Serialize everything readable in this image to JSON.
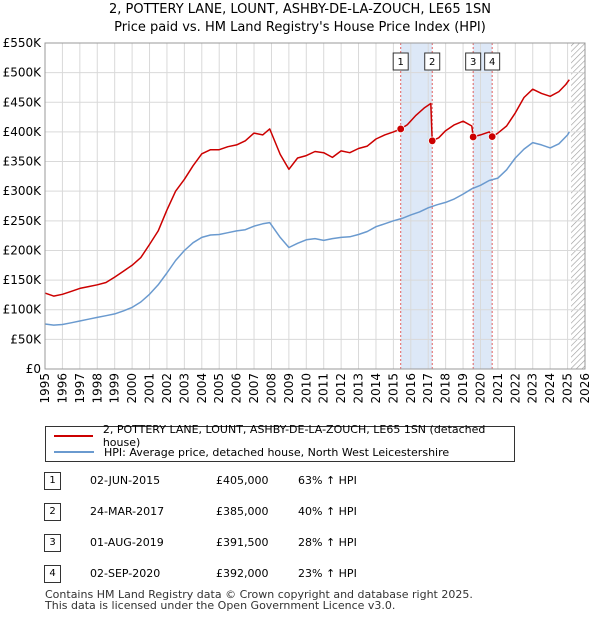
{
  "title_line1": "2, POTTERY LANE, LOUNT, ASHBY-DE-LA-ZOUCH, LE65 1SN",
  "title_line2": "Price paid vs. HM Land Registry's House Price Index (HPI)",
  "colors": {
    "property": "#cc0000",
    "hpi": "#6a9acf",
    "shade": "#dde8f7",
    "marker_line": "#e06060"
  },
  "legend": {
    "property_label": "2, POTTERY LANE, LOUNT, ASHBY-DE-LA-ZOUCH, LE65 1SN (detached house)",
    "hpi_label": "HPI: Average price, detached house, North West Leicestershire"
  },
  "sales": [
    {
      "num": "1",
      "date": "02-JUN-2015",
      "price": "£405,000",
      "hpi": "63% ↑ HPI"
    },
    {
      "num": "2",
      "date": "24-MAR-2017",
      "price": "£385,000",
      "hpi": "40% ↑ HPI"
    },
    {
      "num": "3",
      "date": "01-AUG-2019",
      "price": "£391,500",
      "hpi": "28% ↑ HPI"
    },
    {
      "num": "4",
      "date": "02-SEP-2020",
      "price": "£392,000",
      "hpi": "23% ↑ HPI"
    }
  ],
  "footer": {
    "line1": "Contains HM Land Registry data © Crown copyright and database right 2025.",
    "line2": "This data is licensed under the Open Government Licence v3.0."
  },
  "chart_data": {
    "type": "line",
    "xlim": [
      1995,
      2026
    ],
    "ylim": [
      0,
      550000
    ],
    "x_ticks": [
      1995,
      1996,
      1997,
      1998,
      1999,
      2000,
      2001,
      2002,
      2003,
      2004,
      2005,
      2006,
      2007,
      2008,
      2009,
      2010,
      2011,
      2012,
      2013,
      2014,
      2015,
      2016,
      2017,
      2018,
      2019,
      2020,
      2021,
      2022,
      2023,
      2024,
      2025,
      2026
    ],
    "y_ticks": [
      {
        "v": 0,
        "label": "£0"
      },
      {
        "v": 50000,
        "label": "£50K"
      },
      {
        "v": 100000,
        "label": "£100K"
      },
      {
        "v": 150000,
        "label": "£150K"
      },
      {
        "v": 200000,
        "label": "£200K"
      },
      {
        "v": 250000,
        "label": "£250K"
      },
      {
        "v": 300000,
        "label": "£300K"
      },
      {
        "v": 350000,
        "label": "£350K"
      },
      {
        "v": 400000,
        "label": "£400K"
      },
      {
        "v": 450000,
        "label": "£450K"
      },
      {
        "v": 500000,
        "label": "£500K"
      },
      {
        "v": 550000,
        "label": "£550K"
      }
    ],
    "shaded_ranges": [
      [
        2015.42,
        2017.23
      ],
      [
        2019.58,
        2020.67
      ]
    ],
    "hatch_from": 2025.2,
    "series": [
      {
        "name": "2, POTTERY LANE, LOUNT, ASHBY-DE-LA-ZOUCH, LE65 1SN (detached house)",
        "x": [
          1995,
          1995.5,
          1996,
          1996.5,
          1997,
          1997.5,
          1998,
          1998.5,
          1999,
          1999.5,
          2000,
          2000.5,
          2001,
          2001.5,
          2002,
          2002.5,
          2003,
          2003.5,
          2004,
          2004.5,
          2005,
          2005.5,
          2006,
          2006.5,
          2007,
          2007.5,
          2007.9,
          2008.5,
          2009,
          2009.5,
          2010,
          2010.5,
          2011,
          2011.5,
          2012,
          2012.5,
          2013,
          2013.5,
          2014,
          2014.5,
          2015,
          2015.42,
          2015.8,
          2016.3,
          2016.8,
          2017.15,
          2017.23,
          2017.6,
          2018,
          2018.5,
          2019,
          2019.5,
          2019.58,
          2020,
          2020.5,
          2020.67,
          2021,
          2021.5,
          2022,
          2022.5,
          2023,
          2023.5,
          2024,
          2024.5,
          2024.9,
          2025.1
        ],
        "values": [
          128000,
          123000,
          126000,
          131000,
          136000,
          139000,
          142000,
          146000,
          155000,
          165000,
          175000,
          188000,
          210000,
          233000,
          268000,
          300000,
          320000,
          343000,
          363000,
          370000,
          370000,
          375000,
          378000,
          385000,
          398000,
          395000,
          405000,
          362000,
          337000,
          356000,
          360000,
          367000,
          365000,
          357000,
          368000,
          365000,
          372000,
          376000,
          388000,
          395000,
          400000,
          405000,
          412000,
          428000,
          441000,
          448000,
          385000,
          390000,
          402000,
          412000,
          418000,
          410000,
          391500,
          395000,
          400000,
          392000,
          398000,
          410000,
          432000,
          458000,
          472000,
          465000,
          460000,
          468000,
          480000,
          488000
        ]
      },
      {
        "name": "HPI: Average price, detached house, North West Leicestershire",
        "x": [
          1995,
          1995.5,
          1996,
          1996.5,
          1997,
          1997.5,
          1998,
          1998.5,
          1999,
          1999.5,
          2000,
          2000.5,
          2001,
          2001.5,
          2002,
          2002.5,
          2003,
          2003.5,
          2004,
          2004.5,
          2005,
          2005.5,
          2006,
          2006.5,
          2007,
          2007.5,
          2007.9,
          2008.5,
          2009,
          2009.5,
          2010,
          2010.5,
          2011,
          2011.5,
          2012,
          2012.5,
          2013,
          2013.5,
          2014,
          2014.5,
          2015,
          2015.5,
          2016,
          2016.5,
          2017,
          2017.5,
          2018,
          2018.5,
          2019,
          2019.5,
          2020,
          2020.5,
          2021,
          2021.5,
          2022,
          2022.5,
          2023,
          2023.5,
          2024,
          2024.5,
          2025,
          2025.1
        ],
        "values": [
          76000,
          74000,
          75000,
          78000,
          81000,
          84000,
          87000,
          90000,
          93000,
          98000,
          104000,
          113000,
          126000,
          142000,
          162000,
          183000,
          200000,
          213000,
          222000,
          226000,
          227000,
          230000,
          233000,
          235000,
          241000,
          245000,
          247000,
          222000,
          205000,
          212000,
          218000,
          220000,
          217000,
          220000,
          222000,
          223000,
          227000,
          232000,
          240000,
          245000,
          250000,
          254000,
          260000,
          265000,
          272000,
          277000,
          281000,
          287000,
          295000,
          304000,
          310000,
          318000,
          322000,
          336000,
          356000,
          371000,
          382000,
          378000,
          373000,
          380000,
          395000,
          400000
        ]
      }
    ],
    "sale_points": [
      {
        "label": "1",
        "x": 2015.42,
        "y": 405000
      },
      {
        "label": "2",
        "x": 2017.23,
        "y": 385000
      },
      {
        "label": "3",
        "x": 2019.58,
        "y": 391500
      },
      {
        "label": "4",
        "x": 2020.67,
        "y": 392000
      }
    ]
  }
}
